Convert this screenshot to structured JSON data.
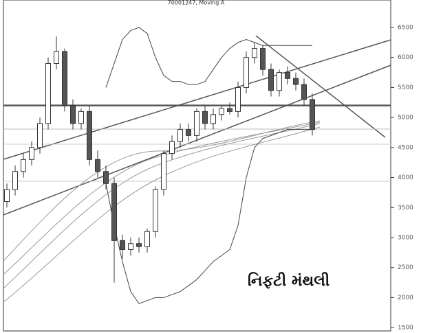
{
  "chart_data": {
    "type": "candlestick",
    "title": "70001247, Moving A",
    "annotation": "નિફટી મંથલી",
    "open": [
      3600,
      3800,
      4100,
      4300,
      4500,
      4900,
      5900,
      6100,
      5200,
      4900,
      5100,
      4300,
      4100,
      3900,
      2950,
      2800,
      2900,
      2850,
      3100,
      3800,
      4400,
      4600,
      4800,
      4700,
      5100,
      4900,
      5050,
      5150,
      5100,
      5500,
      6000,
      6150,
      5800,
      5450,
      5750,
      5650,
      5550,
      5300
    ],
    "high": [
      3900,
      4200,
      4400,
      4600,
      5000,
      6000,
      6350,
      6150,
      5300,
      5150,
      5200,
      4450,
      4200,
      4000,
      3050,
      3000,
      3000,
      3150,
      3850,
      4450,
      4700,
      4900,
      4900,
      5150,
      5200,
      5150,
      5200,
      5250,
      5600,
      6100,
      6250,
      6200,
      5900,
      5800,
      5850,
      5750,
      5650,
      5400
    ],
    "low": [
      3500,
      3700,
      4000,
      4200,
      4400,
      4800,
      5800,
      5100,
      4800,
      4800,
      4200,
      4000,
      3800,
      2250,
      2650,
      2700,
      2750,
      2750,
      3000,
      3700,
      4300,
      4500,
      4600,
      4600,
      4800,
      4800,
      4950,
      5050,
      5000,
      5400,
      5900,
      5700,
      5350,
      5350,
      5550,
      5450,
      5200,
      4700
    ],
    "close": [
      3800,
      4100,
      4300,
      4500,
      4900,
      5900,
      6100,
      5200,
      4900,
      5100,
      4300,
      4100,
      3900,
      2950,
      2800,
      2900,
      2850,
      3100,
      3800,
      4400,
      4600,
      4800,
      4700,
      5100,
      4900,
      5050,
      5150,
      5100,
      5500,
      6000,
      6150,
      5800,
      5450,
      5750,
      5650,
      5550,
      5300,
      4800
    ],
    "up_color": "#ffffff",
    "down_color": "#555555",
    "edge_color": "#333333",
    "series": [
      {
        "name": "upper band",
        "color": "#444444",
        "values": [
          null,
          null,
          null,
          null,
          null,
          null,
          null,
          null,
          null,
          null,
          null,
          null,
          5500,
          5900,
          6300,
          6450,
          6500,
          6400,
          6000,
          5700,
          5600,
          5600,
          5550,
          5550,
          5600,
          5800,
          6000,
          6150,
          6250,
          6300,
          6250,
          6200,
          6200,
          6200,
          6200,
          6200,
          6200,
          6200
        ]
      },
      {
        "name": "lower band",
        "color": "#444444",
        "values": [
          null,
          null,
          null,
          null,
          null,
          null,
          null,
          null,
          null,
          null,
          null,
          null,
          3900,
          3200,
          2600,
          2100,
          1900,
          1950,
          2000,
          2000,
          2050,
          2100,
          2200,
          2300,
          2450,
          2600,
          2700,
          2800,
          3200,
          4000,
          4500,
          4650,
          4700,
          4750,
          4800,
          4800,
          4800,
          4800
        ]
      }
    ],
    "hline": 5200,
    "ylim": [
      1410,
      6866
    ],
    "yticks": [
      1500,
      2000,
      2500,
      3000,
      3500,
      4000,
      4500,
      5000,
      5500,
      6000,
      6500
    ]
  }
}
